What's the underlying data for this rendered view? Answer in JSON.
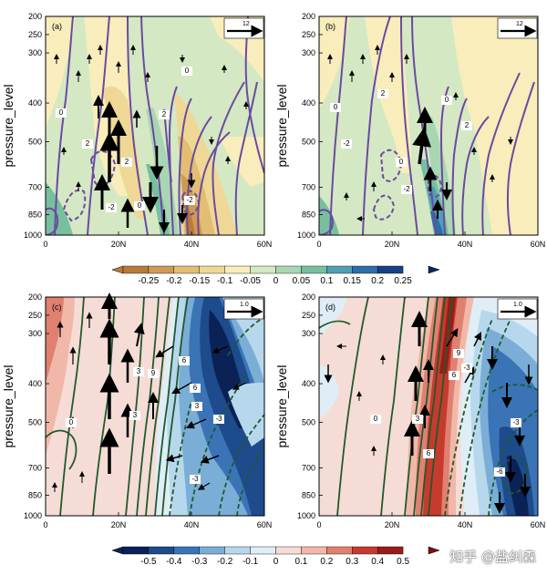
{
  "chart_data": [
    {
      "panel": "(a)",
      "type": "heatmap",
      "ylabel": "pressure_level",
      "x_ticks": [
        "0",
        "20N",
        "40N",
        "60N"
      ],
      "y_ticks": [
        "200",
        "250",
        "300",
        "400",
        "500",
        "700",
        "850",
        "1000"
      ],
      "reference_vector": "12",
      "contour_labels": [
        "0",
        "2",
        "2",
        "0",
        "2",
        "0",
        "-2",
        "-2"
      ]
    },
    {
      "panel": "(b)",
      "type": "heatmap",
      "ylabel": "pressure_level",
      "x_ticks": [
        "0",
        "20N",
        "40N",
        "60N"
      ],
      "y_ticks": [
        "200",
        "250",
        "300",
        "400",
        "500",
        "700",
        "850",
        "1000"
      ],
      "reference_vector": "12",
      "contour_labels": [
        "0",
        "-2",
        "2",
        "0",
        "0",
        "-2",
        "2"
      ]
    },
    {
      "panel": "(c)",
      "type": "heatmap",
      "ylabel": "pressure_level",
      "x_ticks": [
        "0",
        "20N",
        "40N",
        "60N"
      ],
      "y_ticks": [
        "200",
        "250",
        "300",
        "400",
        "500",
        "700",
        "850",
        "1000"
      ],
      "reference_vector": "1.0",
      "contour_labels": [
        "0",
        "3",
        "3",
        "9",
        "6",
        "6",
        "3",
        "-3",
        "-3"
      ]
    },
    {
      "panel": "(d)",
      "type": "heatmap",
      "ylabel": "pressure_level",
      "x_ticks": [
        "0",
        "20N",
        "40N",
        "60N"
      ],
      "y_ticks": [
        "200",
        "250",
        "300",
        "400",
        "500",
        "700",
        "850",
        "1000"
      ],
      "reference_vector": "1.0",
      "contour_labels": [
        "0",
        "3",
        "6",
        "9",
        "6",
        "-3",
        "-3",
        "-6"
      ]
    }
  ],
  "colorbars": {
    "top": {
      "labels": [
        "-0.25",
        "-0.2",
        "-0.15",
        "-0.1",
        "-0.05",
        "0",
        "0.05",
        "0.1",
        "0.15",
        "0.2",
        "0.25"
      ],
      "colors": [
        "#b87b3a",
        "#cf9a52",
        "#e2bd72",
        "#efd896",
        "#f8edbb",
        "#d4e8c4",
        "#a9d6b2",
        "#78bfa0",
        "#4f9fb4",
        "#2c6ea8",
        "#163f86",
        "#0b2763"
      ]
    },
    "bottom": {
      "labels": [
        "-0.5",
        "-0.4",
        "-0.3",
        "-0.2",
        "-0.1",
        "0",
        "0.1",
        "0.2",
        "0.3",
        "0.4",
        "0.5"
      ],
      "colors": [
        "#0b2257",
        "#1d4b8c",
        "#3a74b7",
        "#7aaed6",
        "#b7d8ec",
        "#dfeef6",
        "#f6dcd6",
        "#f1b8a9",
        "#e08070",
        "#c73a2e",
        "#9a1b18",
        "#7a0f10"
      ]
    }
  },
  "watermark": "知乎 @盐纠森"
}
